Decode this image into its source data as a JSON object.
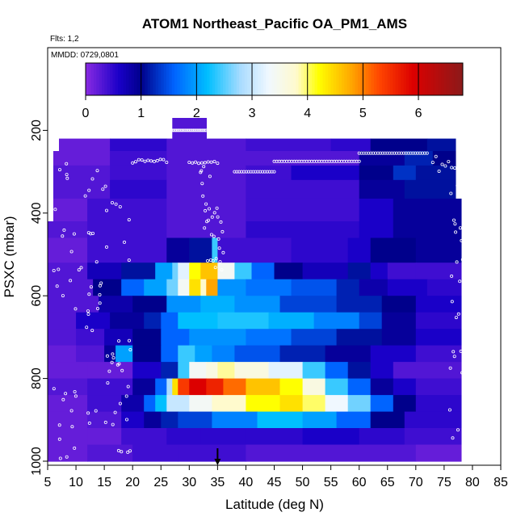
{
  "chart_data": {
    "type": "heatmap",
    "title": "ATOM1 Northeast_Pacific OA_PM1_AMS",
    "flights_note": "Flts: 1,2",
    "date_note": "MMDD: 0729,0801",
    "xlabel": "Latitude (deg N)",
    "ylabel": "PSXC (mbar)",
    "xlim": [
      5,
      85
    ],
    "ylim": [
      1000,
      0
    ],
    "x_ticks": [
      "5",
      "10",
      "15",
      "20",
      "25",
      "30",
      "35",
      "40",
      "45",
      "50",
      "55",
      "60",
      "65",
      "70",
      "75",
      "80",
      "85"
    ],
    "y_ticks": [
      "200",
      "400",
      "600",
      "800",
      "1000"
    ],
    "colorbar": {
      "range": [
        0,
        6.8
      ],
      "ticks": [
        "0",
        "1",
        "2",
        "3",
        "4",
        "5",
        "6"
      ],
      "stops": [
        {
          "v": 0.0,
          "c": "#8a2be2"
        },
        {
          "v": 0.6,
          "c": "#1a00c8"
        },
        {
          "v": 1.0,
          "c": "#00008b"
        },
        {
          "v": 1.6,
          "c": "#0064ff"
        },
        {
          "v": 2.2,
          "c": "#00bfff"
        },
        {
          "v": 2.8,
          "c": "#aadcff"
        },
        {
          "v": 3.3,
          "c": "#f0f8ff"
        },
        {
          "v": 3.8,
          "c": "#fffacd"
        },
        {
          "v": 4.2,
          "c": "#ffff00"
        },
        {
          "v": 4.8,
          "c": "#ffa500"
        },
        {
          "v": 5.3,
          "c": "#ff4500"
        },
        {
          "v": 5.9,
          "c": "#dc0000"
        },
        {
          "v": 6.8,
          "c": "#8b1a1a"
        }
      ]
    },
    "marker_latitude": 35,
    "layers": [
      {
        "p": [
          170,
          220
        ],
        "segs": [
          [
            27,
            33,
            0.3
          ]
        ]
      },
      {
        "p": [
          220,
          250
        ],
        "segs": [
          [
            7,
            16,
            0.2
          ],
          [
            16,
            26,
            0.5
          ],
          [
            26,
            40,
            0.3
          ],
          [
            40,
            55,
            0.4
          ],
          [
            55,
            62,
            0.5
          ],
          [
            62,
            72,
            1.0
          ],
          [
            72,
            77,
            1.1
          ]
        ]
      },
      {
        "p": [
          250,
          285
        ],
        "segs": [
          [
            6,
            16,
            0.2
          ],
          [
            16,
            26,
            0.4
          ],
          [
            26,
            40,
            0.3
          ],
          [
            40,
            60,
            0.3
          ],
          [
            60,
            68,
            0.9
          ],
          [
            68,
            73,
            1.2
          ],
          [
            73,
            77,
            1.0
          ]
        ]
      },
      {
        "p": [
          285,
          320
        ],
        "segs": [
          [
            6,
            16,
            0.3
          ],
          [
            16,
            26,
            0.4
          ],
          [
            26,
            40,
            0.3
          ],
          [
            40,
            48,
            0.4
          ],
          [
            48,
            60,
            0.6
          ],
          [
            60,
            66,
            1.0
          ],
          [
            66,
            70,
            1.3
          ],
          [
            70,
            77,
            1.1
          ]
        ]
      },
      {
        "p": [
          320,
          365
        ],
        "segs": [
          [
            6,
            16,
            0.3
          ],
          [
            16,
            26,
            0.5
          ],
          [
            26,
            40,
            0.3
          ],
          [
            40,
            48,
            0.4
          ],
          [
            48,
            60,
            0.4
          ],
          [
            60,
            68,
            0.9
          ],
          [
            68,
            77,
            1.1
          ]
        ]
      },
      {
        "p": [
          365,
          420
        ],
        "segs": [
          [
            6,
            12,
            0.2
          ],
          [
            12,
            26,
            0.4
          ],
          [
            26,
            40,
            0.3
          ],
          [
            40,
            60,
            0.4
          ],
          [
            60,
            66,
            0.6
          ],
          [
            66,
            78,
            0.9
          ]
        ]
      },
      {
        "p": [
          420,
          460
        ],
        "segs": [
          [
            5,
            12,
            0.3
          ],
          [
            12,
            26,
            0.4
          ],
          [
            26,
            40,
            0.3
          ],
          [
            40,
            60,
            0.5
          ],
          [
            60,
            66,
            0.6
          ],
          [
            66,
            78,
            0.9
          ]
        ]
      },
      {
        "p": [
          460,
          520
        ],
        "segs": [
          [
            5,
            12,
            0.2
          ],
          [
            12,
            26,
            0.4
          ],
          [
            26,
            30,
            0.9
          ],
          [
            30,
            34,
            1.1
          ],
          [
            34,
            35,
            2.4
          ],
          [
            35,
            48,
            0.4
          ],
          [
            48,
            58,
            0.5
          ],
          [
            58,
            62,
            0.6
          ],
          [
            62,
            70,
            1.0
          ],
          [
            70,
            78,
            0.9
          ]
        ]
      },
      {
        "p": [
          520,
          560
        ],
        "segs": [
          [
            5,
            12,
            0.3
          ],
          [
            12,
            18,
            0.7
          ],
          [
            18,
            24,
            1.1
          ],
          [
            24,
            27,
            2.0
          ],
          [
            27,
            28,
            2.6
          ],
          [
            28,
            30,
            3.2
          ],
          [
            30,
            32,
            4.2
          ],
          [
            32,
            35,
            4.6
          ],
          [
            35,
            38,
            3.4
          ],
          [
            38,
            41,
            2.4
          ],
          [
            41,
            45,
            1.6
          ],
          [
            45,
            50,
            1.0
          ],
          [
            50,
            58,
            0.7
          ],
          [
            58,
            62,
            1.1
          ],
          [
            62,
            65,
            0.6
          ],
          [
            65,
            70,
            0.4
          ],
          [
            70,
            78,
            0.4
          ]
        ]
      },
      {
        "p": [
          560,
          600
        ],
        "segs": [
          [
            5,
            13,
            0.3
          ],
          [
            13,
            18,
            1.0
          ],
          [
            18,
            22,
            1.6
          ],
          [
            22,
            26,
            2.0
          ],
          [
            26,
            28,
            2.6
          ],
          [
            28,
            30,
            3.4
          ],
          [
            30,
            32,
            4.4
          ],
          [
            32,
            33,
            3.8
          ],
          [
            33,
            35,
            4.8
          ],
          [
            35,
            40,
            1.9
          ],
          [
            40,
            48,
            1.7
          ],
          [
            48,
            56,
            1.5
          ],
          [
            56,
            60,
            1.2
          ],
          [
            60,
            65,
            0.8
          ],
          [
            65,
            72,
            0.6
          ],
          [
            72,
            78,
            0.5
          ]
        ]
      },
      {
        "p": [
          600,
          640
        ],
        "segs": [
          [
            5,
            14,
            0.3
          ],
          [
            14,
            20,
            0.8
          ],
          [
            20,
            26,
            1.0
          ],
          [
            26,
            32,
            1.9
          ],
          [
            32,
            38,
            2.1
          ],
          [
            38,
            46,
            1.9
          ],
          [
            46,
            56,
            1.4
          ],
          [
            56,
            64,
            1.2
          ],
          [
            64,
            70,
            1.0
          ],
          [
            70,
            78,
            0.6
          ]
        ]
      },
      {
        "p": [
          640,
          680
        ],
        "segs": [
          [
            5,
            10,
            0.3
          ],
          [
            10,
            16,
            0.6
          ],
          [
            16,
            22,
            0.9
          ],
          [
            22,
            25,
            1.2
          ],
          [
            25,
            28,
            1.6
          ],
          [
            28,
            35,
            2.2
          ],
          [
            35,
            44,
            2.3
          ],
          [
            44,
            52,
            2.1
          ],
          [
            52,
            60,
            1.8
          ],
          [
            60,
            64,
            1.4
          ],
          [
            64,
            70,
            0.9
          ],
          [
            70,
            78,
            0.5
          ]
        ]
      },
      {
        "p": [
          680,
          720
        ],
        "segs": [
          [
            5,
            10,
            0.3
          ],
          [
            10,
            15,
            0.4
          ],
          [
            15,
            20,
            0.7
          ],
          [
            20,
            25,
            1.0
          ],
          [
            25,
            30,
            1.6
          ],
          [
            30,
            40,
            1.9
          ],
          [
            40,
            48,
            1.7
          ],
          [
            48,
            56,
            1.4
          ],
          [
            56,
            64,
            1.1
          ],
          [
            64,
            70,
            0.9
          ],
          [
            70,
            78,
            0.6
          ]
        ]
      },
      {
        "p": [
          720,
          760
        ],
        "segs": [
          [
            5,
            10,
            0.2
          ],
          [
            10,
            15,
            0.3
          ],
          [
            15,
            17,
            0.9
          ],
          [
            17,
            20,
            2.0
          ],
          [
            20,
            25,
            1.0
          ],
          [
            25,
            28,
            1.6
          ],
          [
            28,
            31,
            2.4
          ],
          [
            31,
            34,
            2.0
          ],
          [
            34,
            38,
            1.8
          ],
          [
            38,
            46,
            1.5
          ],
          [
            46,
            54,
            1.2
          ],
          [
            54,
            62,
            0.9
          ],
          [
            62,
            70,
            0.6
          ],
          [
            70,
            78,
            0.4
          ]
        ]
      },
      {
        "p": [
          760,
          800
        ],
        "segs": [
          [
            5,
            12,
            0.2
          ],
          [
            12,
            20,
            0.2
          ],
          [
            20,
            25,
            0.6
          ],
          [
            25,
            28,
            1.2
          ],
          [
            28,
            30,
            2.4
          ],
          [
            30,
            33,
            3.4
          ],
          [
            33,
            35,
            3.6
          ],
          [
            35,
            38,
            3.9
          ],
          [
            38,
            44,
            3.6
          ],
          [
            44,
            50,
            3.2
          ],
          [
            50,
            54,
            2.4
          ],
          [
            54,
            58,
            1.6
          ],
          [
            58,
            62,
            1.1
          ],
          [
            62,
            66,
            0.6
          ],
          [
            66,
            78,
            0.3
          ]
        ]
      },
      {
        "p": [
          800,
          840
        ],
        "segs": [
          [
            5,
            12,
            0.3
          ],
          [
            12,
            20,
            0.4
          ],
          [
            20,
            24,
            0.9
          ],
          [
            24,
            26,
            1.6
          ],
          [
            26,
            27,
            2.8
          ],
          [
            27,
            28,
            4.4
          ],
          [
            28,
            30,
            5.4
          ],
          [
            30,
            33,
            5.9
          ],
          [
            33,
            36,
            5.6
          ],
          [
            36,
            40,
            5.1
          ],
          [
            40,
            46,
            4.6
          ],
          [
            46,
            50,
            4.2
          ],
          [
            50,
            54,
            3.6
          ],
          [
            54,
            58,
            2.4
          ],
          [
            58,
            62,
            1.6
          ],
          [
            62,
            66,
            0.9
          ],
          [
            66,
            70,
            0.6
          ],
          [
            70,
            78,
            0.4
          ]
        ]
      },
      {
        "p": [
          840,
          880
        ],
        "segs": [
          [
            5,
            12,
            0.2
          ],
          [
            12,
            18,
            0.4
          ],
          [
            18,
            22,
            0.8
          ],
          [
            22,
            24,
            1.6
          ],
          [
            24,
            26,
            2.2
          ],
          [
            26,
            30,
            3.0
          ],
          [
            30,
            34,
            3.4
          ],
          [
            34,
            40,
            3.8
          ],
          [
            40,
            46,
            4.2
          ],
          [
            46,
            50,
            4.4
          ],
          [
            50,
            54,
            4.0
          ],
          [
            54,
            58,
            3.3
          ],
          [
            58,
            62,
            2.6
          ],
          [
            62,
            66,
            1.6
          ],
          [
            66,
            70,
            1.0
          ],
          [
            70,
            78,
            0.5
          ]
        ]
      },
      {
        "p": [
          880,
          920
        ],
        "segs": [
          [
            5,
            12,
            0.2
          ],
          [
            12,
            18,
            0.3
          ],
          [
            18,
            22,
            0.6
          ],
          [
            22,
            25,
            0.9
          ],
          [
            25,
            28,
            1.2
          ],
          [
            28,
            34,
            1.4
          ],
          [
            34,
            42,
            1.8
          ],
          [
            42,
            50,
            2.2
          ],
          [
            50,
            56,
            2.0
          ],
          [
            56,
            62,
            1.6
          ],
          [
            62,
            68,
            1.0
          ],
          [
            68,
            78,
            0.5
          ]
        ]
      },
      {
        "p": [
          920,
          960
        ],
        "segs": [
          [
            5,
            12,
            0.2
          ],
          [
            12,
            18,
            0.2
          ],
          [
            18,
            26,
            0.4
          ],
          [
            26,
            32,
            0.5
          ],
          [
            32,
            40,
            0.5
          ],
          [
            40,
            50,
            0.5
          ],
          [
            50,
            60,
            0.6
          ],
          [
            60,
            68,
            0.5
          ],
          [
            68,
            78,
            0.4
          ]
        ]
      },
      {
        "p": [
          960,
          1000
        ],
        "segs": [
          [
            5,
            12,
            0.2
          ],
          [
            12,
            20,
            0.3
          ],
          [
            20,
            28,
            0.4
          ],
          [
            28,
            40,
            0.4
          ],
          [
            40,
            50,
            0.3
          ],
          [
            50,
            60,
            0.3
          ],
          [
            60,
            70,
            0.3
          ],
          [
            70,
            78,
            0.2
          ]
        ]
      }
    ]
  }
}
